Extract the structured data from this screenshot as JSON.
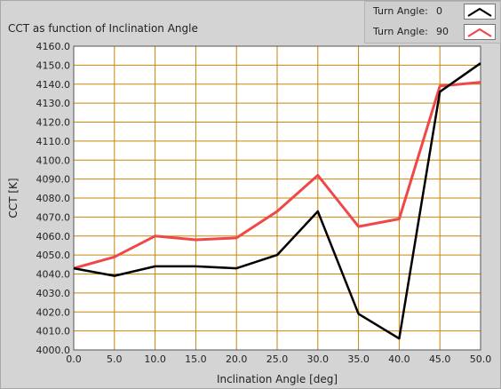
{
  "chart_data": {
    "type": "line",
    "title": "CCT as function of Inclination Angle",
    "xlabel": "Inclination Angle [deg]",
    "ylabel": "CCT [K]",
    "xlim": [
      0,
      50
    ],
    "ylim": [
      4000,
      4160
    ],
    "x_ticks": [
      "0.0",
      "5.0",
      "10.0",
      "15.0",
      "20.0",
      "25.0",
      "30.0",
      "35.0",
      "40.0",
      "45.0",
      "50.0"
    ],
    "y_ticks": [
      "4000.0",
      "4010.0",
      "4020.0",
      "4030.0",
      "4040.0",
      "4050.0",
      "4060.0",
      "4070.0",
      "4080.0",
      "4090.0",
      "4100.0",
      "4110.0",
      "4120.0",
      "4130.0",
      "4140.0",
      "4150.0",
      "4160.0"
    ],
    "grid": true,
    "legend_position": "top-right",
    "x": [
      0,
      5,
      10,
      15,
      20,
      25,
      30,
      35,
      40,
      45,
      50
    ],
    "series": [
      {
        "legend_label": "Turn Angle:",
        "legend_value": "0",
        "color": "#000000",
        "values": [
          4043,
          4039,
          4044,
          4044,
          4043,
          4050,
          4073,
          4019,
          4006,
          4136,
          4151
        ]
      },
      {
        "legend_label": "Turn Angle:",
        "legend_value": "90",
        "color": "#f04848",
        "values": [
          4043,
          4049,
          4060,
          4058,
          4059,
          4073,
          4092,
          4065,
          4069,
          4139,
          4141
        ]
      }
    ]
  },
  "colors": {
    "plot_background": "#ffffff",
    "grid": "#c8860a",
    "frame": "#d4d4d4"
  }
}
